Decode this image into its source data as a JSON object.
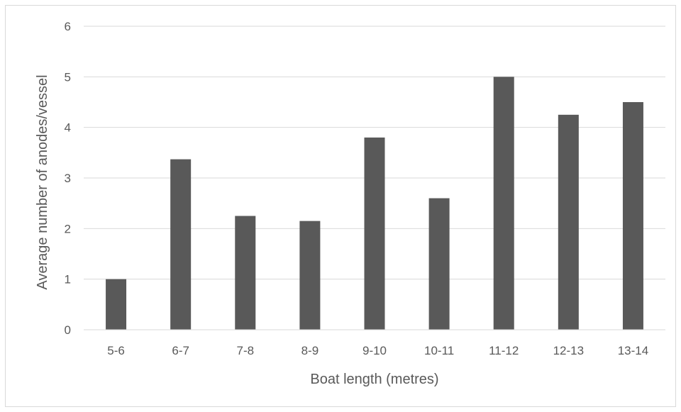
{
  "chart_data": {
    "type": "bar",
    "title": "",
    "xlabel": "Boat length (metres)",
    "ylabel": "Average number of anodes/vessel",
    "categories": [
      "5-6",
      "6-7",
      "7-8",
      "8-9",
      "9-10",
      "10-11",
      "11-12",
      "12-13",
      "13-14"
    ],
    "values": [
      1.0,
      3.37,
      2.25,
      2.15,
      3.8,
      2.6,
      5.0,
      4.25,
      4.5
    ],
    "ylim": [
      0,
      6
    ],
    "yticks": [
      0,
      1,
      2,
      3,
      4,
      5,
      6
    ],
    "grid": true,
    "legend": "none",
    "bar_color": "#595959",
    "grid_color": "#d9d9d9"
  }
}
